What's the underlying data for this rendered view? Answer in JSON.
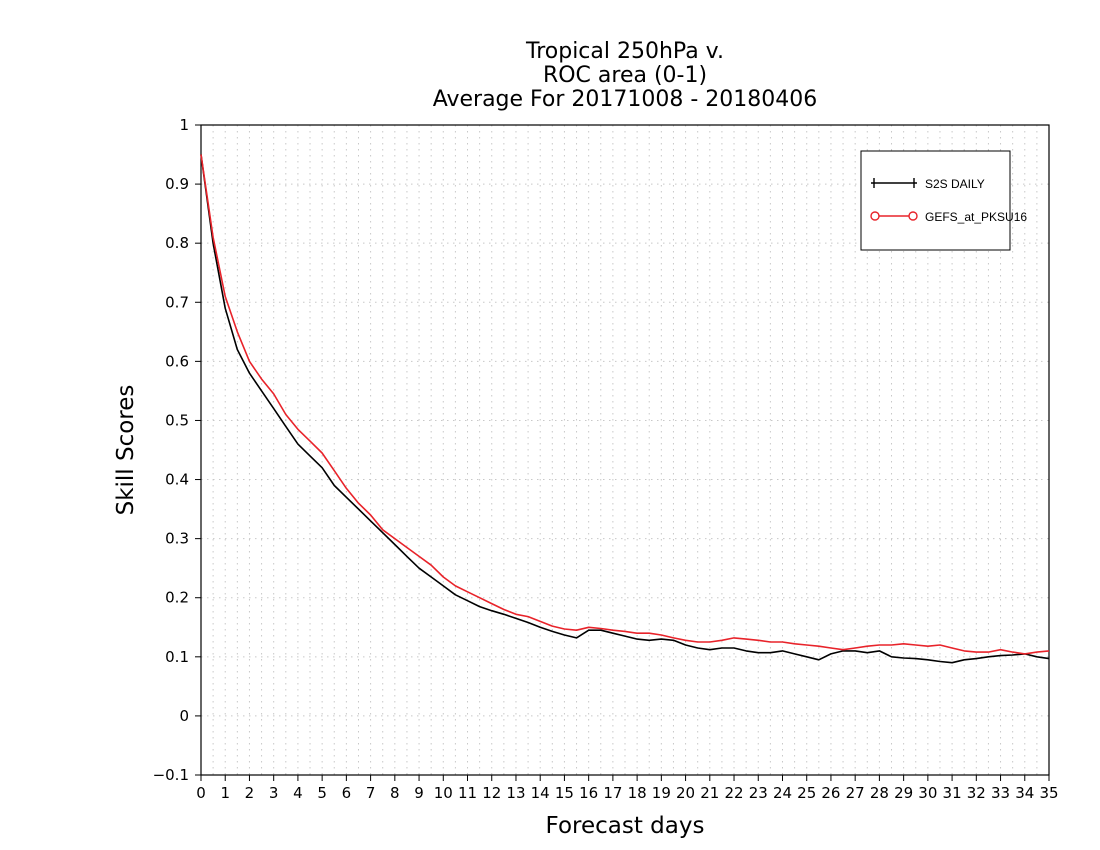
{
  "chart_data": {
    "type": "line",
    "title": [
      "Tropical 250hPa v.",
      "ROC area (0-1)",
      "Average For 20171008 - 20180406"
    ],
    "xlabel": "Forecast days",
    "ylabel": "Skill Scores",
    "xlim": [
      0,
      35
    ],
    "ylim": [
      -0.1,
      1
    ],
    "x_ticks": [
      "0",
      "1",
      "2",
      "3",
      "4",
      "5",
      "6",
      "7",
      "8",
      "9",
      "10",
      "11",
      "12",
      "13",
      "14",
      "15",
      "16",
      "17",
      "18",
      "19",
      "20",
      "21",
      "22",
      "23",
      "24",
      "25",
      "26",
      "27",
      "28",
      "29",
      "30",
      "31",
      "32",
      "33",
      "34",
      "35"
    ],
    "y_ticks": [
      -0.1,
      0,
      0.1,
      0.2,
      0.3,
      0.4,
      0.5,
      0.6,
      0.7,
      0.8,
      0.9,
      1
    ],
    "grid": true,
    "legend_position": "top-right",
    "series": [
      {
        "name": "S2S DAILY",
        "color": "#000000",
        "x": [
          0,
          0.5,
          1,
          1.5,
          2,
          2.5,
          3,
          3.5,
          4,
          4.5,
          5,
          5.5,
          6,
          6.5,
          7,
          7.5,
          8,
          8.5,
          9,
          9.5,
          10,
          10.5,
          11,
          11.5,
          12,
          12.5,
          13,
          13.5,
          14,
          14.5,
          15,
          15.5,
          16,
          16.5,
          17,
          17.5,
          18,
          18.5,
          19,
          19.5,
          20,
          20.5,
          21,
          21.5,
          22,
          22.5,
          23,
          23.5,
          24,
          24.5,
          25,
          25.5,
          26,
          26.5,
          27,
          27.5,
          28,
          28.5,
          29,
          29.5,
          30,
          30.5,
          31,
          31.5,
          32,
          32.5,
          33,
          33.5,
          34,
          34.5,
          35
        ],
        "values": [
          0.95,
          0.8,
          0.69,
          0.62,
          0.58,
          0.55,
          0.52,
          0.49,
          0.46,
          0.44,
          0.42,
          0.39,
          0.37,
          0.35,
          0.33,
          0.31,
          0.29,
          0.27,
          0.25,
          0.235,
          0.22,
          0.205,
          0.195,
          0.185,
          0.178,
          0.172,
          0.165,
          0.158,
          0.15,
          0.143,
          0.137,
          0.132,
          0.145,
          0.145,
          0.14,
          0.135,
          0.13,
          0.128,
          0.13,
          0.128,
          0.12,
          0.115,
          0.112,
          0.115,
          0.115,
          0.11,
          0.107,
          0.107,
          0.11,
          0.105,
          0.1,
          0.095,
          0.105,
          0.11,
          0.11,
          0.107,
          0.11,
          0.1,
          0.098,
          0.097,
          0.095,
          0.092,
          0.09,
          0.095,
          0.097,
          0.1,
          0.102,
          0.103,
          0.105,
          0.1,
          0.097
        ]
      },
      {
        "name": "GEFS_at_PKSU16",
        "color": "#e8232a",
        "x": [
          0,
          0.5,
          1,
          1.5,
          2,
          2.5,
          3,
          3.5,
          4,
          4.5,
          5,
          5.5,
          6,
          6.5,
          7,
          7.5,
          8,
          8.5,
          9,
          9.5,
          10,
          10.5,
          11,
          11.5,
          12,
          12.5,
          13,
          13.5,
          14,
          14.5,
          15,
          15.5,
          16,
          16.5,
          17,
          17.5,
          18,
          18.5,
          19,
          19.5,
          20,
          20.5,
          21,
          21.5,
          22,
          22.5,
          23,
          23.5,
          24,
          24.5,
          25,
          25.5,
          26,
          26.5,
          27,
          27.5,
          28,
          28.5,
          29,
          29.5,
          30,
          30.5,
          31,
          31.5,
          32,
          32.5,
          33,
          33.5,
          34,
          34.5,
          35
        ],
        "values": [
          0.95,
          0.81,
          0.71,
          0.65,
          0.6,
          0.57,
          0.545,
          0.51,
          0.485,
          0.465,
          0.445,
          0.415,
          0.385,
          0.36,
          0.34,
          0.315,
          0.3,
          0.285,
          0.27,
          0.255,
          0.235,
          0.22,
          0.21,
          0.2,
          0.19,
          0.18,
          0.172,
          0.168,
          0.16,
          0.152,
          0.147,
          0.145,
          0.15,
          0.148,
          0.145,
          0.143,
          0.14,
          0.14,
          0.137,
          0.132,
          0.128,
          0.125,
          0.125,
          0.128,
          0.132,
          0.13,
          0.128,
          0.125,
          0.125,
          0.122,
          0.12,
          0.118,
          0.115,
          0.112,
          0.115,
          0.118,
          0.12,
          0.12,
          0.122,
          0.12,
          0.118,
          0.12,
          0.115,
          0.11,
          0.108,
          0.108,
          0.112,
          0.108,
          0.105,
          0.108,
          0.11
        ]
      }
    ]
  }
}
